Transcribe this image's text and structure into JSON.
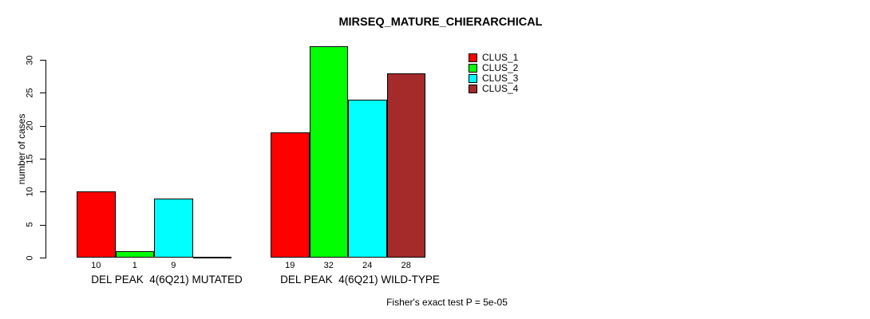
{
  "figure": {
    "title": "MIRSEQ_MATURE_CHIERARCHICAL",
    "ylabel": "number of cases",
    "footer": "Fisher's exact test P = 5e-05",
    "background_color": "#FFFFFF",
    "axis_color": "#000000"
  },
  "chart_data": {
    "type": "bar",
    "title": "MIRSEQ_MATURE_CHIERARCHICAL",
    "xlabel": "",
    "ylabel": "number of cases",
    "ylim": [
      0,
      30
    ],
    "yticks": [
      0,
      5,
      10,
      15,
      20,
      25,
      30
    ],
    "grid": false,
    "legend_position": "top-right",
    "annotation": "Fisher's exact test P = 5e-05",
    "categories": [
      "DEL PEAK  4(6Q21) MUTATED",
      "DEL PEAK  4(6Q21) WILD-TYPE"
    ],
    "series": [
      {
        "name": "CLUS_1",
        "color": "#FF0000",
        "values": [
          10,
          19
        ]
      },
      {
        "name": "CLUS_2",
        "color": "#00FF00",
        "values": [
          1,
          32
        ]
      },
      {
        "name": "CLUS_3",
        "color": "#00FFFF",
        "values": [
          9,
          24
        ]
      },
      {
        "name": "CLUS_4",
        "color": "#A52A2A",
        "values": [
          0,
          28
        ]
      }
    ],
    "bar_value_labels_visible": true,
    "zero_value_labels_hidden": true
  }
}
